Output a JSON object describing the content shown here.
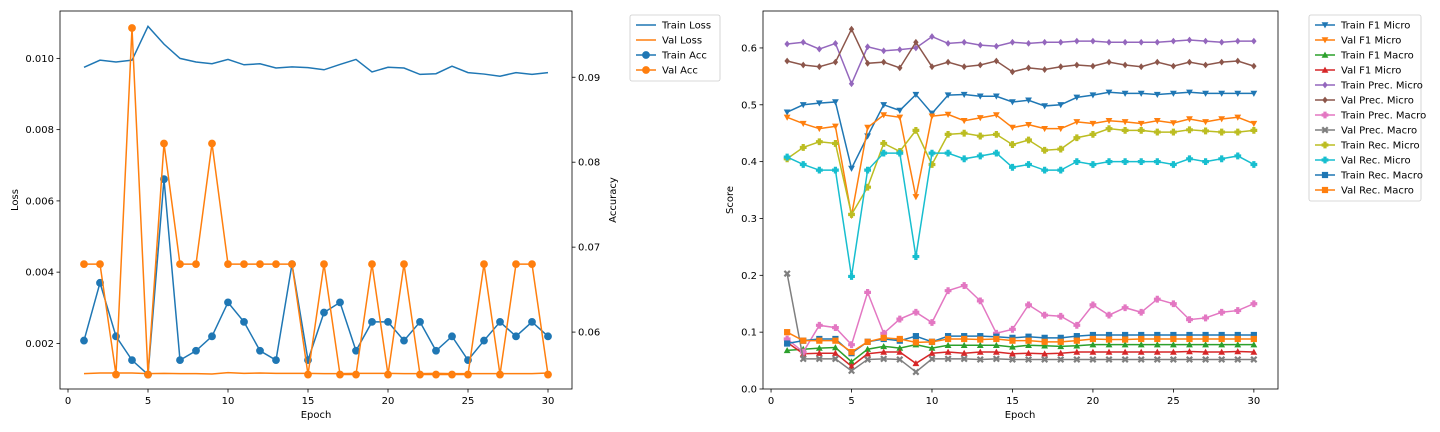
{
  "chart_data": [
    {
      "type": "line",
      "title": "",
      "xlabel": "Epoch",
      "ylabel": "Loss",
      "y2label": "Accuracy",
      "xlim": [
        -0.5,
        31.5
      ],
      "ylim": [
        0.00072,
        0.01133
      ],
      "y2lim": [
        0.0533,
        0.0978
      ],
      "xticks": [
        0,
        5,
        10,
        15,
        20,
        25,
        30
      ],
      "yticks": [
        0.002,
        0.004,
        0.006,
        0.008,
        0.01
      ],
      "ytick_labels": [
        "0.002",
        "0.004",
        "0.006",
        "0.008",
        "0.010"
      ],
      "y2ticks": [
        0.06,
        0.07,
        0.08,
        0.09
      ],
      "y2tick_labels": [
        "0.06",
        "0.07",
        "0.08",
        "0.09"
      ],
      "legend_position": "outside-top-right",
      "x": [
        1,
        2,
        3,
        4,
        5,
        6,
        7,
        8,
        9,
        10,
        11,
        12,
        13,
        14,
        15,
        16,
        17,
        18,
        19,
        20,
        21,
        22,
        23,
        24,
        25,
        26,
        27,
        28,
        29,
        30
      ],
      "series": [
        {
          "name": "Train Loss",
          "axis": "left",
          "color": "#1f77b4",
          "marker": "none",
          "values": [
            0.00975,
            0.00995,
            0.0099,
            0.00995,
            0.0109,
            0.0104,
            0.01,
            0.0099,
            0.00985,
            0.00997,
            0.00982,
            0.00985,
            0.00973,
            0.00976,
            0.00974,
            0.00968,
            0.00983,
            0.00997,
            0.00962,
            0.00975,
            0.00973,
            0.00955,
            0.00957,
            0.00978,
            0.0096,
            0.00956,
            0.0095,
            0.0096,
            0.00955,
            0.0096
          ]
        },
        {
          "name": "Val Loss",
          "axis": "left",
          "color": "#ff7f0e",
          "marker": "none",
          "values": [
            0.00115,
            0.00117,
            0.00117,
            0.00117,
            0.00115,
            0.00116,
            0.00115,
            0.00115,
            0.00114,
            0.00118,
            0.00116,
            0.00117,
            0.00116,
            0.00116,
            0.00116,
            0.00115,
            0.00115,
            0.00116,
            0.00116,
            0.00116,
            0.00115,
            0.00115,
            0.00116,
            0.00115,
            0.00115,
            0.00115,
            0.00115,
            0.00115,
            0.00115,
            0.00117
          ]
        },
        {
          "name": "Train Acc",
          "axis": "right",
          "color": "#1f77b4",
          "marker": "circle",
          "values": [
            0.059,
            0.0658,
            0.0595,
            0.0567,
            0.055,
            0.078,
            0.0567,
            0.0578,
            0.0595,
            0.0635,
            0.0612,
            0.0578,
            0.0567,
            0.068,
            0.0567,
            0.0623,
            0.0635,
            0.0578,
            0.0612,
            0.0612,
            0.059,
            0.0612,
            0.0578,
            0.0595,
            0.0567,
            0.059,
            0.0612,
            0.0595,
            0.0612,
            0.0595
          ]
        },
        {
          "name": "Val Acc",
          "axis": "right",
          "color": "#ff7f0e",
          "marker": "circle",
          "values": [
            0.068,
            0.068,
            0.055,
            0.0958,
            0.055,
            0.0822,
            0.068,
            0.068,
            0.0822,
            0.068,
            0.068,
            0.068,
            0.068,
            0.068,
            0.055,
            0.068,
            0.055,
            0.055,
            0.068,
            0.055,
            0.068,
            0.055,
            0.055,
            0.055,
            0.055,
            0.068,
            0.055,
            0.068,
            0.068,
            0.055
          ]
        }
      ]
    },
    {
      "type": "line",
      "title": "",
      "xlabel": "Epoch",
      "ylabel": "Score",
      "xlim": [
        -0.5,
        31.5
      ],
      "ylim": [
        0.0,
        0.665
      ],
      "xticks": [
        0,
        5,
        10,
        15,
        20,
        25,
        30
      ],
      "yticks": [
        0.0,
        0.1,
        0.2,
        0.3,
        0.4,
        0.5,
        0.6
      ],
      "ytick_labels": [
        "0.0",
        "0.1",
        "0.2",
        "0.3",
        "0.4",
        "0.5",
        "0.6"
      ],
      "legend_position": "outside-top-right",
      "x": [
        1,
        2,
        3,
        4,
        5,
        6,
        7,
        8,
        9,
        10,
        11,
        12,
        13,
        14,
        15,
        16,
        17,
        18,
        19,
        20,
        21,
        22,
        23,
        24,
        25,
        26,
        27,
        28,
        29,
        30
      ],
      "series": [
        {
          "name": "Train F1 Micro",
          "color": "#1f77b4",
          "marker": "triangle-down",
          "values": [
            0.487,
            0.5,
            0.503,
            0.505,
            0.388,
            0.445,
            0.5,
            0.49,
            0.518,
            0.485,
            0.517,
            0.518,
            0.515,
            0.515,
            0.505,
            0.508,
            0.498,
            0.5,
            0.513,
            0.517,
            0.522,
            0.52,
            0.52,
            0.518,
            0.52,
            0.522,
            0.52,
            0.52,
            0.52,
            0.52
          ]
        },
        {
          "name": "Val F1 Micro",
          "color": "#ff7f0e",
          "marker": "triangle-down",
          "values": [
            0.478,
            0.467,
            0.458,
            0.462,
            0.305,
            0.46,
            0.482,
            0.478,
            0.338,
            0.48,
            0.483,
            0.472,
            0.477,
            0.482,
            0.46,
            0.465,
            0.458,
            0.458,
            0.47,
            0.467,
            0.472,
            0.47,
            0.467,
            0.472,
            0.468,
            0.475,
            0.47,
            0.475,
            0.478,
            0.467
          ]
        },
        {
          "name": "Train F1 Macro",
          "color": "#2ca02c",
          "marker": "triangle-up",
          "values": [
            0.068,
            0.07,
            0.072,
            0.073,
            0.048,
            0.07,
            0.075,
            0.072,
            0.078,
            0.072,
            0.077,
            0.077,
            0.077,
            0.077,
            0.074,
            0.077,
            0.076,
            0.075,
            0.076,
            0.078,
            0.078,
            0.078,
            0.078,
            0.078,
            0.078,
            0.078,
            0.078,
            0.078,
            0.078,
            0.078
          ]
        },
        {
          "name": "Val F1 Micro",
          "color": "#d62728",
          "marker": "triangle-up",
          "values": [
            0.082,
            0.062,
            0.063,
            0.063,
            0.04,
            0.062,
            0.065,
            0.065,
            0.045,
            0.063,
            0.065,
            0.063,
            0.065,
            0.065,
            0.062,
            0.063,
            0.062,
            0.063,
            0.065,
            0.065,
            0.065,
            0.065,
            0.065,
            0.065,
            0.065,
            0.066,
            0.065,
            0.065,
            0.066,
            0.065
          ]
        },
        {
          "name": "Train Prec. Micro",
          "color": "#9467bd",
          "marker": "diamond",
          "values": [
            0.607,
            0.61,
            0.598,
            0.608,
            0.537,
            0.602,
            0.595,
            0.597,
            0.6,
            0.62,
            0.608,
            0.61,
            0.605,
            0.603,
            0.61,
            0.608,
            0.61,
            0.61,
            0.612,
            0.612,
            0.61,
            0.61,
            0.61,
            0.61,
            0.612,
            0.614,
            0.612,
            0.61,
            0.612,
            0.612
          ]
        },
        {
          "name": "Val Prec. Micro",
          "color": "#8c564b",
          "marker": "diamond",
          "values": [
            0.577,
            0.57,
            0.567,
            0.575,
            0.633,
            0.573,
            0.575,
            0.565,
            0.61,
            0.567,
            0.575,
            0.567,
            0.57,
            0.577,
            0.558,
            0.565,
            0.562,
            0.567,
            0.57,
            0.568,
            0.575,
            0.57,
            0.567,
            0.575,
            0.568,
            0.575,
            0.57,
            0.575,
            0.577,
            0.568
          ]
        },
        {
          "name": "Train Prec. Macro",
          "color": "#e377c2",
          "marker": "plus",
          "values": [
            0.088,
            0.065,
            0.112,
            0.108,
            0.078,
            0.17,
            0.098,
            0.123,
            0.135,
            0.117,
            0.173,
            0.182,
            0.155,
            0.098,
            0.105,
            0.148,
            0.13,
            0.128,
            0.112,
            0.148,
            0.13,
            0.143,
            0.135,
            0.158,
            0.15,
            0.122,
            0.125,
            0.135,
            0.138,
            0.15
          ]
        },
        {
          "name": "Val Prec. Macro",
          "color": "#7f7f7f",
          "marker": "x",
          "values": [
            0.203,
            0.053,
            0.053,
            0.053,
            0.032,
            0.052,
            0.053,
            0.052,
            0.03,
            0.053,
            0.053,
            0.053,
            0.052,
            0.053,
            0.052,
            0.052,
            0.052,
            0.052,
            0.052,
            0.052,
            0.052,
            0.052,
            0.052,
            0.052,
            0.052,
            0.052,
            0.052,
            0.052,
            0.052,
            0.052
          ]
        },
        {
          "name": "Train Rec. Micro",
          "color": "#bcbd22",
          "marker": "plus",
          "values": [
            0.405,
            0.425,
            0.435,
            0.432,
            0.307,
            0.355,
            0.432,
            0.418,
            0.455,
            0.395,
            0.448,
            0.45,
            0.445,
            0.448,
            0.43,
            0.438,
            0.42,
            0.422,
            0.442,
            0.448,
            0.458,
            0.455,
            0.455,
            0.452,
            0.452,
            0.456,
            0.454,
            0.452,
            0.452,
            0.455
          ]
        },
        {
          "name": "Val Rec. Micro",
          "color": "#17becf",
          "marker": "plus",
          "values": [
            0.408,
            0.395,
            0.385,
            0.385,
            0.198,
            0.385,
            0.415,
            0.415,
            0.233,
            0.415,
            0.415,
            0.405,
            0.41,
            0.415,
            0.39,
            0.395,
            0.385,
            0.385,
            0.4,
            0.395,
            0.4,
            0.4,
            0.4,
            0.4,
            0.395,
            0.405,
            0.4,
            0.405,
            0.41,
            0.395
          ]
        },
        {
          "name": "Train Rec. Macro",
          "color": "#1f77b4",
          "marker": "square",
          "values": [
            0.08,
            0.085,
            0.088,
            0.088,
            0.063,
            0.083,
            0.088,
            0.085,
            0.093,
            0.083,
            0.093,
            0.093,
            0.093,
            0.092,
            0.09,
            0.092,
            0.09,
            0.09,
            0.093,
            0.095,
            0.095,
            0.095,
            0.095,
            0.095,
            0.095,
            0.095,
            0.095,
            0.095,
            0.095,
            0.095
          ]
        },
        {
          "name": "Val Rec. Macro",
          "color": "#ff7f0e",
          "marker": "square",
          "values": [
            0.1,
            0.085,
            0.085,
            0.085,
            0.065,
            0.083,
            0.09,
            0.088,
            0.082,
            0.083,
            0.088,
            0.088,
            0.087,
            0.088,
            0.085,
            0.085,
            0.083,
            0.083,
            0.085,
            0.088,
            0.087,
            0.087,
            0.088,
            0.088,
            0.088,
            0.088,
            0.088,
            0.088,
            0.088,
            0.088
          ]
        }
      ]
    }
  ]
}
